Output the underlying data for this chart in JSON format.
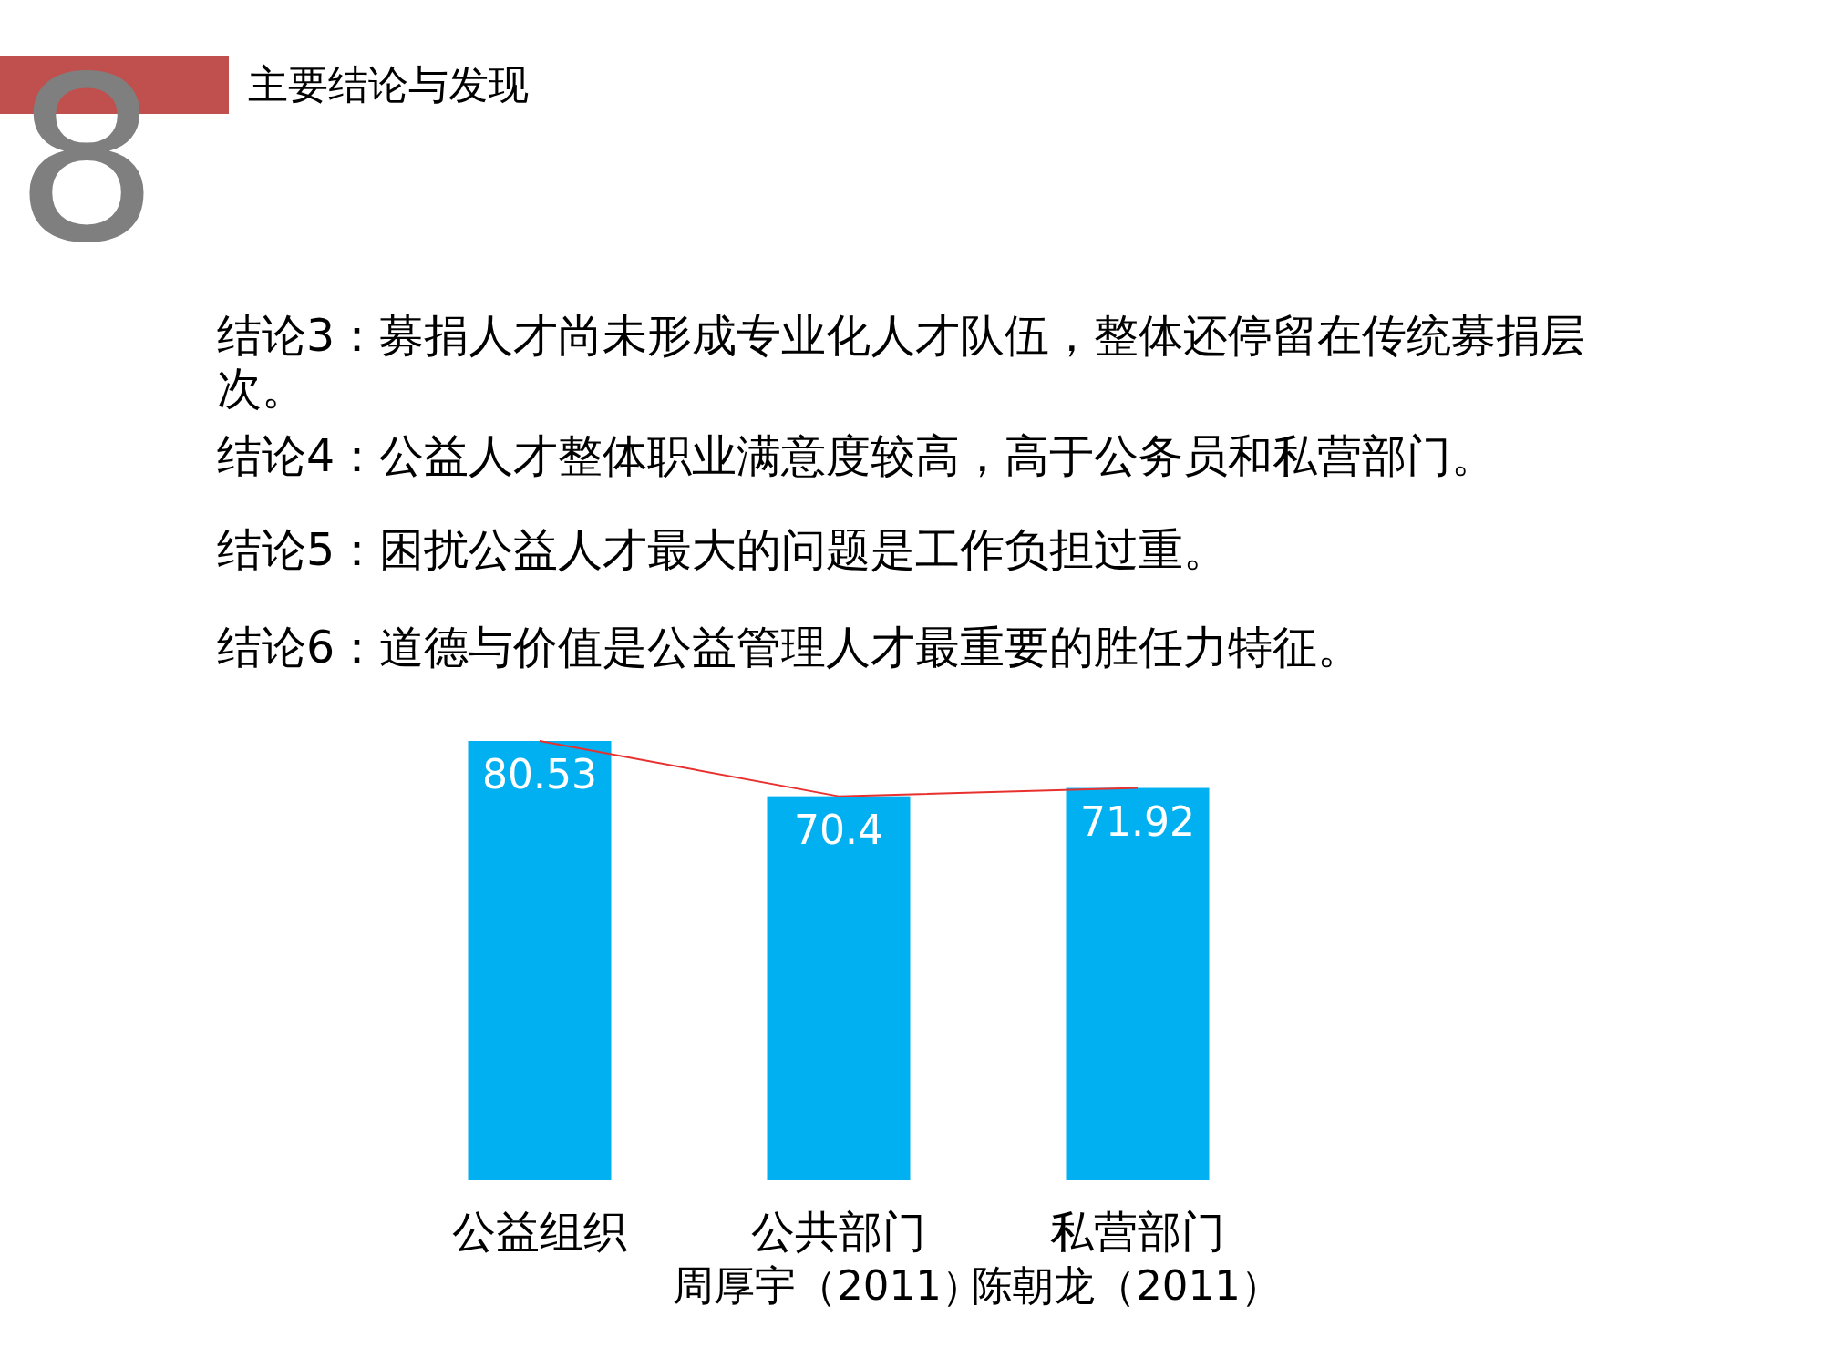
{
  "chart_data": {
    "type": "bar",
    "title": "主要结论与发现",
    "annotations": [
      "8",
      "结论3：募捐人才尚未形成专业化人才队伍，整体还停留在传统募捐层次。",
      "结论4：公益人才整体职业满意度较高，高于公务员和私营部门。",
      "结论5：困扰公益人才最大的问题是工作负担过重。",
      "结论6：道德与价值是公益管理人才最重要的胜任力特征。",
      "周厚宇（2011）",
      "陈朝龙（2011）"
    ],
    "categories": [
      "公益组织",
      "公共部门",
      "私营部门"
    ],
    "series": [
      {
        "color": "#00b0f0",
        "values": [
          80.53,
          70.4,
          71.92
        ],
        "value_labels": [
          "80.53",
          "70.4",
          "71.92"
        ]
      },
      {
        "type": "line",
        "color": "#e8312f",
        "values": [
          80.53,
          70.4,
          71.92
        ]
      }
    ]
  }
}
